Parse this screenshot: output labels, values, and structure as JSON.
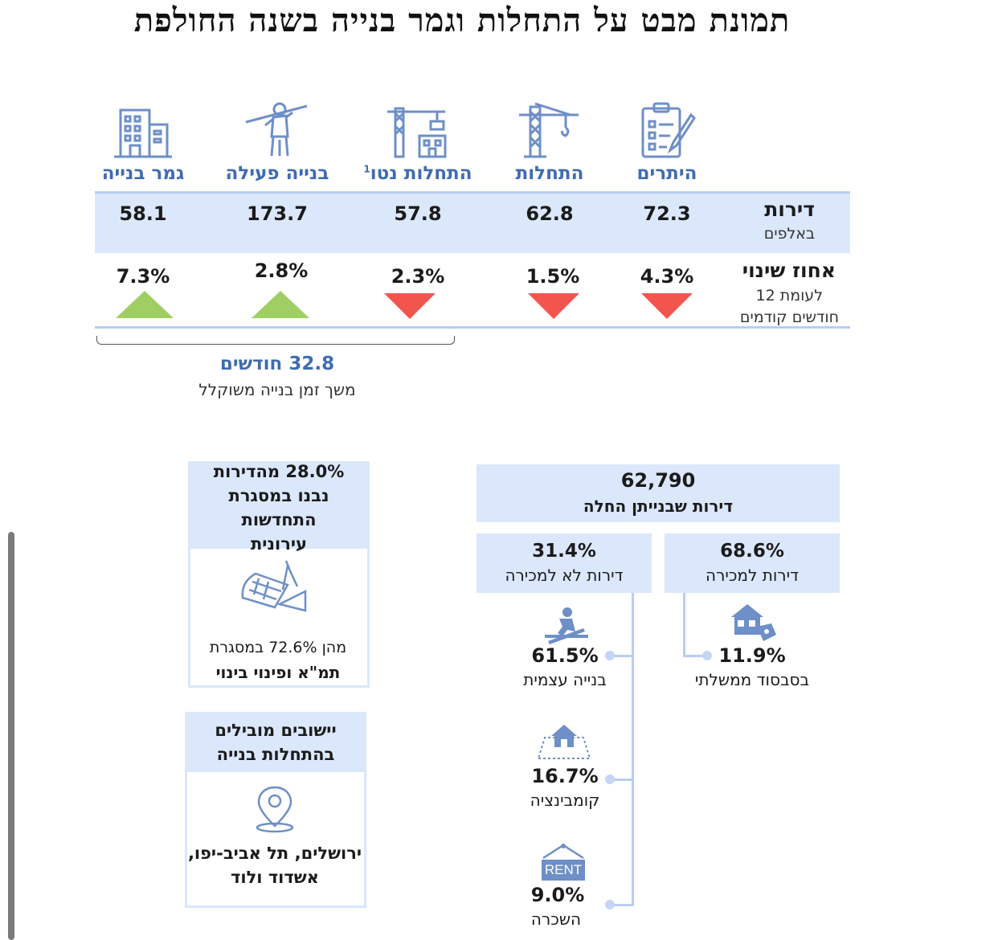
{
  "title": "תמונת מבט על התחלות וגמר בנייה בשנה החולפת",
  "columns": [
    {
      "label": "היתרים",
      "icon": "permit-clipboard-icon",
      "value": "72.3",
      "change": "4.3%",
      "direction": "down"
    },
    {
      "label": "התחלות",
      "icon": "crane-icon",
      "value": "62.8",
      "change": "1.5%",
      "direction": "down"
    },
    {
      "label": "התחלות נטו",
      "sup": "1",
      "icon": "crane-building-icon",
      "value": "57.8",
      "change": "2.3%",
      "direction": "down"
    },
    {
      "label": "בנייה פעילה",
      "icon": "construction-worker-icon",
      "value": "173.7",
      "change": "2.8%",
      "direction": "up"
    },
    {
      "label": "גמר בנייה",
      "icon": "building-icon",
      "value": "58.1",
      "change": "7.3%",
      "direction": "up"
    }
  ],
  "row_units": {
    "title": "דירות",
    "subtitle": "באלפים"
  },
  "row_change": {
    "title": "אחוז שינוי",
    "subtitle_line1": "לעומת 12",
    "subtitle_line2": "חודשים קודמים"
  },
  "duration": {
    "value": "32.8 חודשים",
    "label": "משך זמן בנייה משוקלל"
  },
  "urban_renewal": {
    "line1": "28.0% מהדירות",
    "line2": "נבנו במסגרת",
    "line3": "התחדשות",
    "line4": "עירונית",
    "icon": "blueprint-icon",
    "sub_line1": "מהן 72.6% במסגרת",
    "sub_line2": "תמ\"א ופינוי בינוי"
  },
  "leading_towns": {
    "line1": "יישובים מובילים",
    "line2": "בהתחלות בנייה",
    "icon": "location-pin-icon",
    "towns_line1": "ירושלים, תל אביב-יפו,",
    "towns_line2": "אשדוד ולוד"
  },
  "started": {
    "total": "62,790",
    "label": "דירות שבנייתן החלה"
  },
  "for_sale": {
    "pct": "68.6%",
    "label": "דירות למכירה",
    "sub_pct": "11.9%",
    "sub_label": "בסבסוד ממשלתי",
    "icon": "house-tag-icon"
  },
  "not_for_sale": {
    "pct": "31.4%",
    "label": "דירות לא למכירה",
    "items": [
      {
        "pct": "61.5%",
        "label": "בנייה עצמית",
        "icon": "worker-building-icon"
      },
      {
        "pct": "16.7%",
        "label": "קומבינציה",
        "icon": "house-combination-icon"
      },
      {
        "pct": "9.0%",
        "label": "השכרה",
        "icon": "rent-sign-icon",
        "icon_text": "RENT"
      }
    ]
  },
  "colors": {
    "accent_blue": "#3f6bb0",
    "band": "#dbe7fb",
    "up": "#9fcf62",
    "down": "#f2554d"
  }
}
